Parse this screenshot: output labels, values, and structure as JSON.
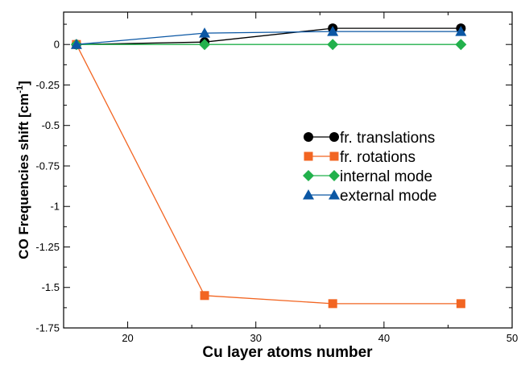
{
  "chart_data": {
    "type": "line",
    "xlabel": "Cu layer atoms number",
    "ylabel_main": "CO Frequencies shift [cm",
    "ylabel_sup": "-1",
    "ylabel_close": "]",
    "xlim": [
      15,
      50
    ],
    "ylim": [
      -1.75,
      0.2
    ],
    "xticks": [
      20,
      30,
      40,
      50
    ],
    "yticks": [
      0,
      -0.25,
      -0.5,
      -0.75,
      -1,
      -1.25,
      -1.5,
      -1.75
    ],
    "xtick_labels": [
      "20",
      "30",
      "40",
      "50"
    ],
    "ytick_labels": [
      "0",
      "-0.25",
      "-0.5",
      "-0.75",
      "-1",
      "-1.25",
      "-1.5",
      "-1.75"
    ],
    "x": [
      16,
      26,
      36,
      46
    ],
    "legend_position": "center-right",
    "grid": false,
    "series": [
      {
        "name": "fr. translations",
        "color": "#000000",
        "marker": "circle",
        "values": [
          0.0,
          0.015,
          0.1,
          0.1
        ]
      },
      {
        "name": "fr. rotations",
        "color": "#f26522",
        "marker": "square",
        "values": [
          0.0,
          -1.55,
          -1.6,
          -1.6
        ]
      },
      {
        "name": "internal mode",
        "color": "#22b14c",
        "marker": "diamond",
        "values": [
          0.0,
          0.0,
          0.0,
          0.0
        ]
      },
      {
        "name": "external mode",
        "color": "#0b57a4",
        "marker": "triangle",
        "values": [
          0.0,
          0.07,
          0.08,
          0.08
        ]
      }
    ]
  }
}
